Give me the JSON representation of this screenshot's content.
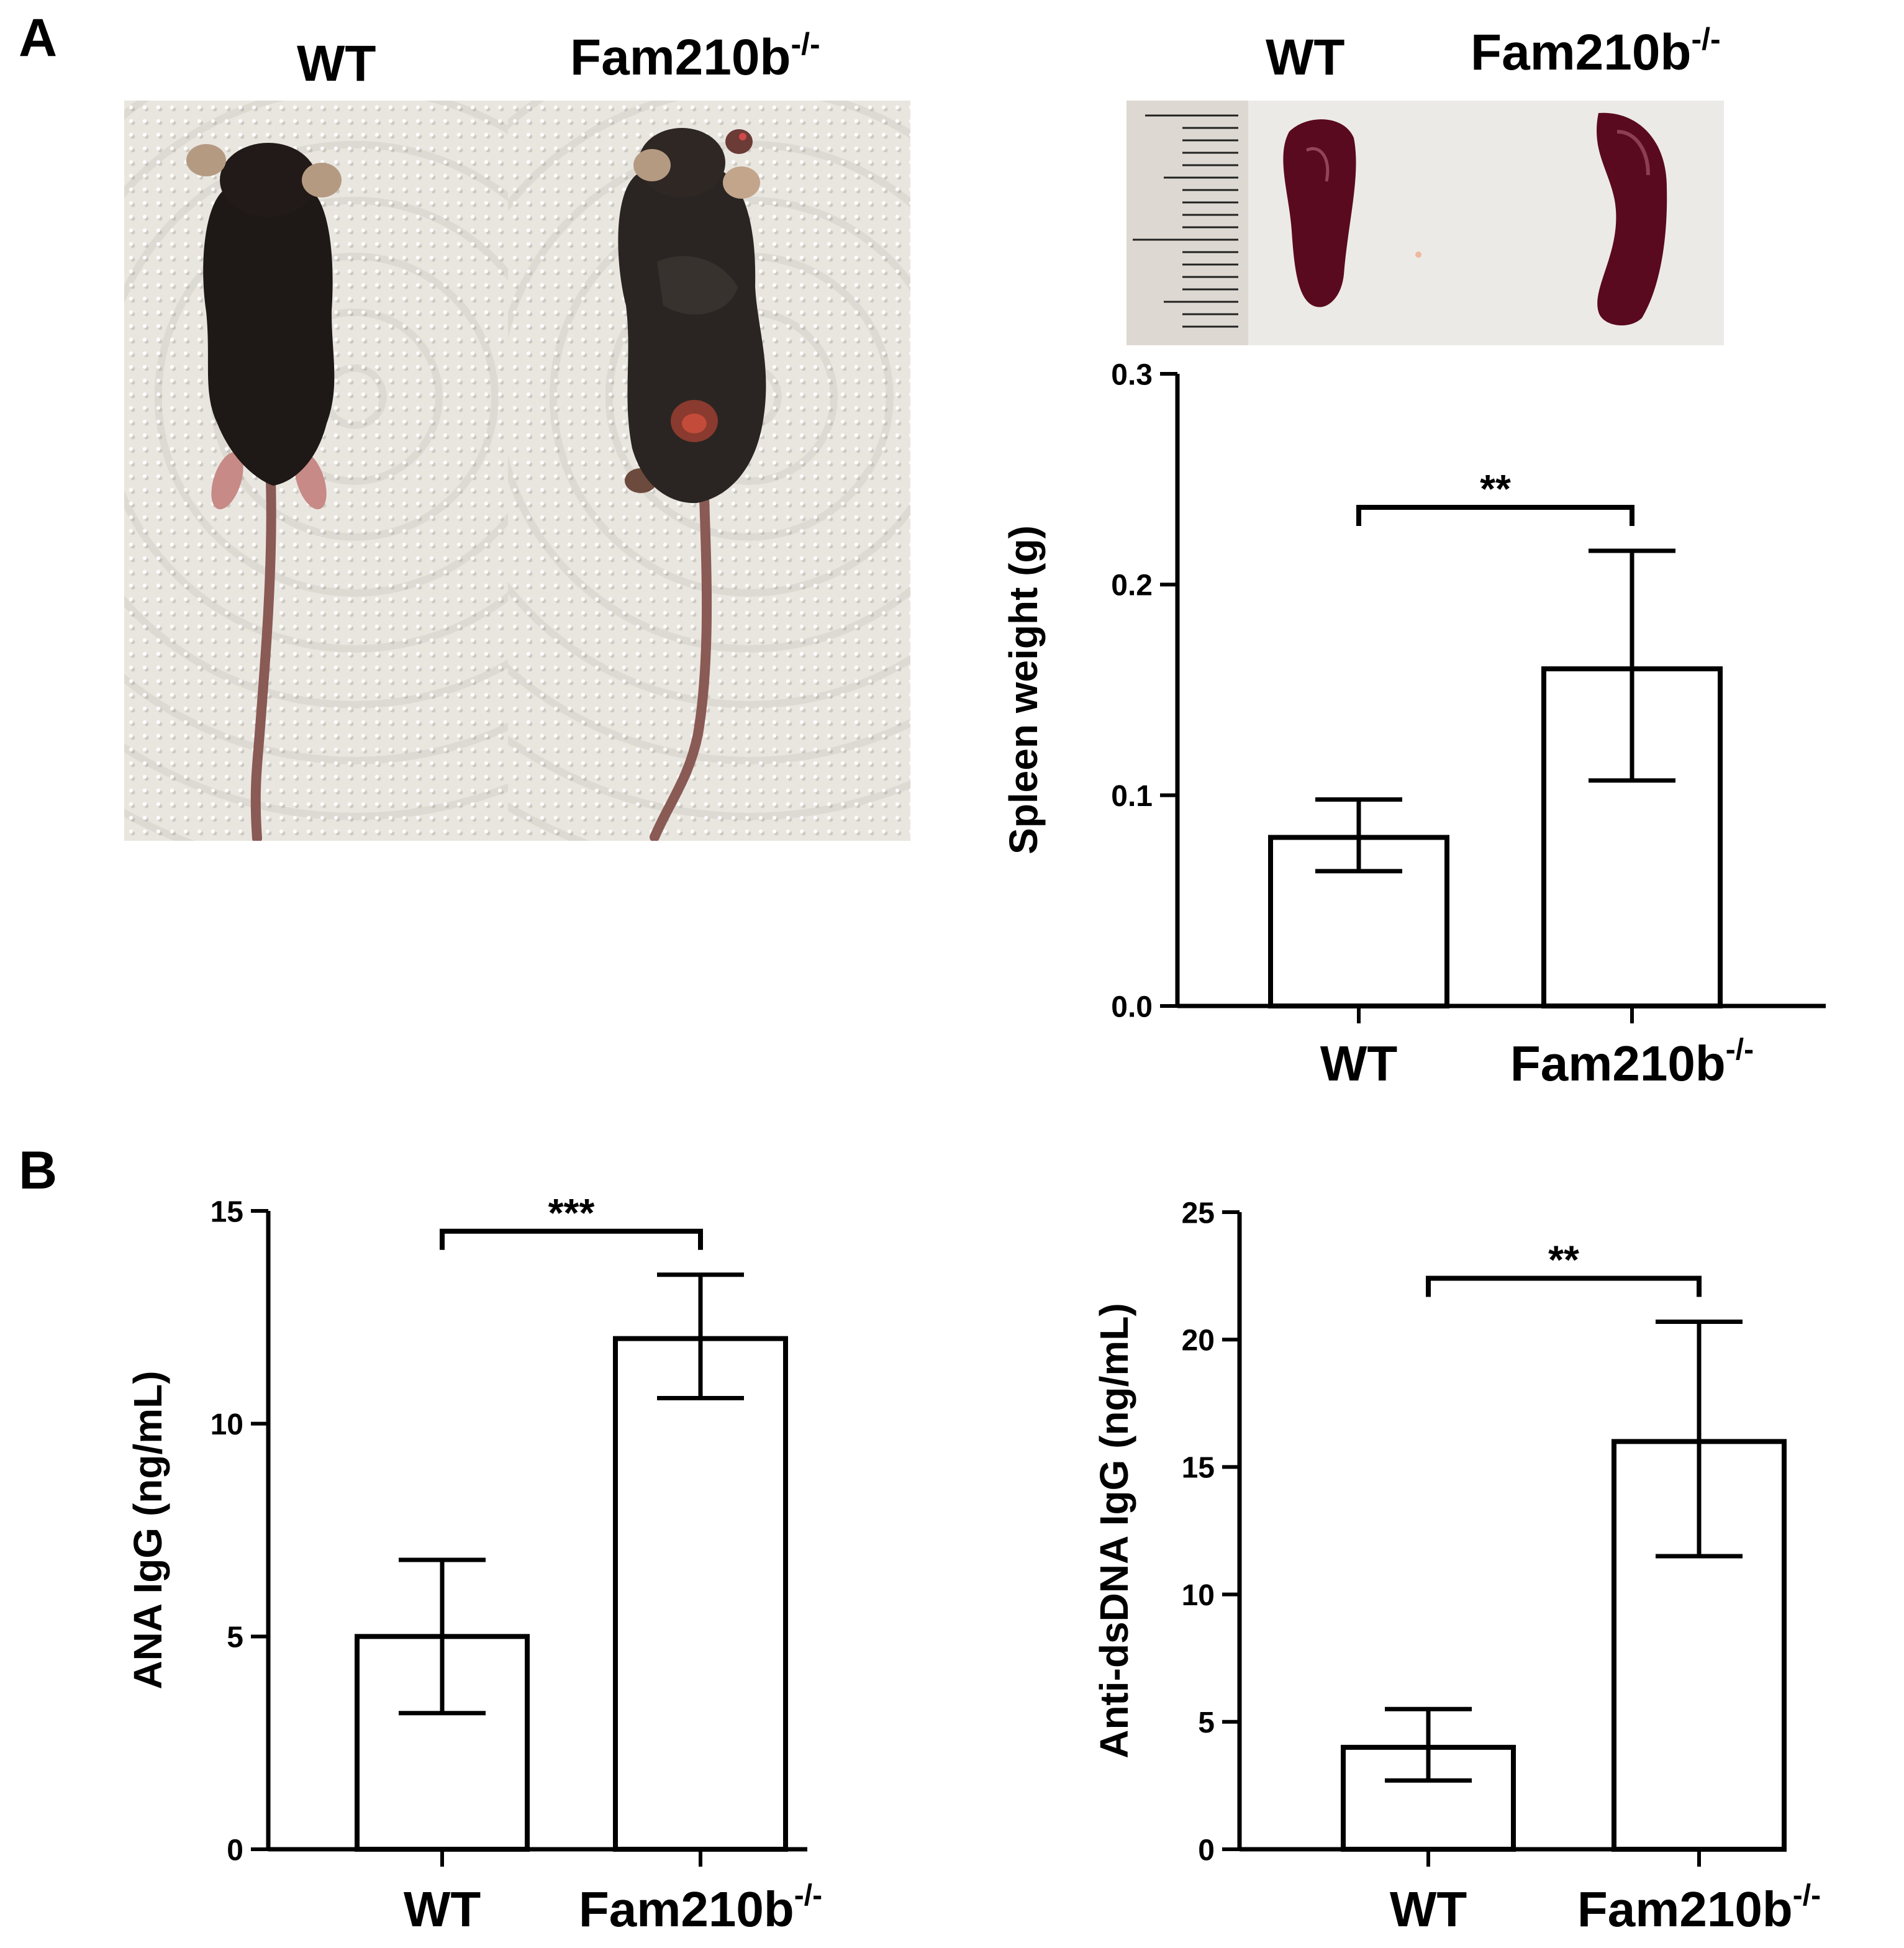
{
  "panel_a": {
    "letter": "A",
    "mouse_photo": {
      "label_wt": "WT",
      "label_ko": "Fam210b",
      "label_ko_sup": "-/-"
    },
    "spleen_photo": {
      "label_wt": "WT",
      "label_ko": "Fam210b",
      "label_ko_sup": "-/-"
    }
  },
  "panel_b": {
    "letter": "B"
  },
  "colors": {
    "bar_fill": "#ffffff",
    "stroke": "#000000",
    "spleen": "#5a0a1e",
    "mouse_fur": "#1e1816"
  },
  "chart_data": [
    {
      "id": "spleen",
      "type": "bar",
      "categories": [
        "WT",
        "Fam210b"
      ],
      "category_sup": [
        "",
        "-/-"
      ],
      "values": [
        0.08,
        0.16
      ],
      "error_low": [
        0.064,
        0.107
      ],
      "error_high": [
        0.098,
        0.216
      ],
      "ylabel": "Spleen weight (g)",
      "ylim": [
        0,
        0.3
      ],
      "yticks": [
        "0.0",
        "0.1",
        "0.2",
        "0.3"
      ],
      "significance": "**",
      "grid": false
    },
    {
      "id": "ana",
      "type": "bar",
      "categories": [
        "WT",
        "Fam210b"
      ],
      "category_sup": [
        "",
        "-/-"
      ],
      "values": [
        5.0,
        12.0
      ],
      "error_low": [
        3.2,
        10.6
      ],
      "error_high": [
        6.8,
        13.5
      ],
      "ylabel": "ANA IgG (ng/mL)",
      "ylim": [
        0,
        15
      ],
      "yticks": [
        "0",
        "5",
        "10",
        "15"
      ],
      "significance": "***",
      "grid": false
    },
    {
      "id": "dsdna",
      "type": "bar",
      "categories": [
        "WT",
        "Fam210b"
      ],
      "category_sup": [
        "",
        "-/-"
      ],
      "values": [
        4.0,
        16.0
      ],
      "error_low": [
        2.7,
        11.5
      ],
      "error_high": [
        5.5,
        20.7
      ],
      "ylabel": "Anti-dsDNA IgG (ng/mL)",
      "ylim": [
        0,
        25
      ],
      "yticks": [
        "0",
        "5",
        "10",
        "15",
        "20",
        "25"
      ],
      "significance": "**",
      "grid": false
    }
  ]
}
